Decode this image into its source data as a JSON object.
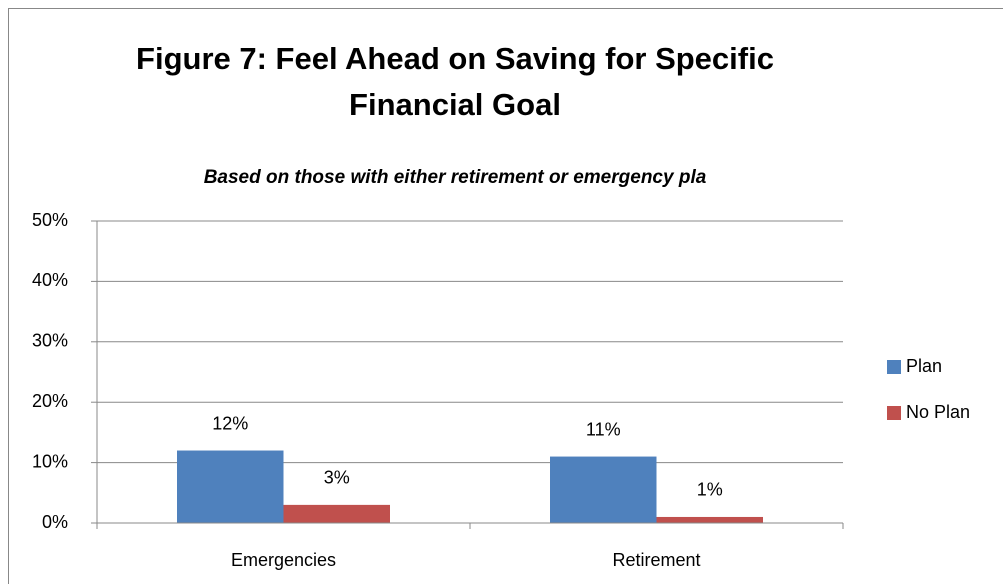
{
  "chart_data": {
    "type": "bar",
    "title": [
      "Figure 7: Feel Ahead on Saving for Specific",
      "Financial Goal"
    ],
    "subtitle": "Based on those with either retirement or emergency pla",
    "categories": [
      "Emergencies",
      "Retirement"
    ],
    "series": [
      {
        "name": "Plan",
        "color": "#4f81bd",
        "values": [
          12,
          11
        ],
        "value_labels": [
          "12%",
          "11%"
        ]
      },
      {
        "name": "No Plan",
        "color": "#c0504d",
        "values": [
          3,
          1
        ],
        "value_labels": [
          "3%",
          "1%"
        ]
      }
    ],
    "ylim": [
      0,
      50
    ],
    "yticks": [
      {
        "value": 0,
        "label": "0%"
      },
      {
        "value": 10,
        "label": "10%"
      },
      {
        "value": 20,
        "label": "20%"
      },
      {
        "value": 30,
        "label": "30%"
      },
      {
        "value": 40,
        "label": "40%"
      },
      {
        "value": 50,
        "label": "50%"
      }
    ],
    "grid": true,
    "legend": "right"
  }
}
